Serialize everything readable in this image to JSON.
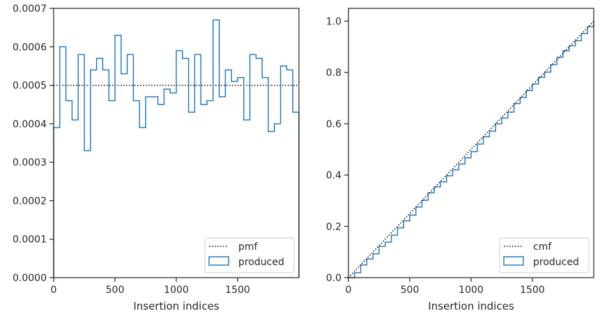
{
  "chart_data": [
    {
      "type": "step-histogram",
      "xlabel": "Insertion indices",
      "ylabel": "",
      "xlim": [
        0,
        2000
      ],
      "ylim": [
        0,
        0.0007
      ],
      "x_ticks": [
        0,
        500,
        1000,
        1500
      ],
      "y_ticks": [
        0.0,
        0.0001,
        0.0002,
        0.0003,
        0.0004,
        0.0005,
        0.0006,
        0.0007
      ],
      "y_tick_labels": [
        "0.0000",
        "0.0001",
        "0.0002",
        "0.0003",
        "0.0004",
        "0.0005",
        "0.0006",
        "0.0007"
      ],
      "bin_width": 50,
      "reference_line": {
        "name": "pmf",
        "value": 0.0005,
        "style": "dotted",
        "color": "#000000"
      },
      "series": [
        {
          "name": "produced",
          "color": "#2b7bba",
          "values": [
            0.00039,
            0.0006,
            0.00046,
            0.00041,
            0.00058,
            0.00033,
            0.00054,
            0.00057,
            0.00054,
            0.00046,
            0.00063,
            0.00053,
            0.00058,
            0.00046,
            0.00039,
            0.00047,
            0.00047,
            0.00045,
            0.00049,
            0.00048,
            0.00059,
            0.00057,
            0.00043,
            0.00058,
            0.00045,
            0.00046,
            0.00067,
            0.00047,
            0.00054,
            0.00051,
            0.00052,
            0.00041,
            0.00058,
            0.00057,
            0.00052,
            0.00038,
            0.0004,
            0.00055,
            0.00054,
            0.00043
          ]
        }
      ],
      "legend": {
        "position": "lower-right",
        "entries": [
          "pmf",
          "produced"
        ]
      },
      "grid": false
    },
    {
      "type": "step-cumulative",
      "xlabel": "Insertion indices",
      "ylabel": "",
      "xlim": [
        0,
        2000
      ],
      "ylim": [
        0,
        1.05
      ],
      "x_ticks": [
        0,
        500,
        1000,
        1500
      ],
      "y_ticks": [
        0.0,
        0.2,
        0.4,
        0.6,
        0.8,
        1.0
      ],
      "y_tick_labels": [
        "0.0",
        "0.2",
        "0.4",
        "0.6",
        "0.8",
        "1.0"
      ],
      "reference_line": {
        "name": "cmf",
        "from": [
          0,
          0
        ],
        "to": [
          2000,
          1.0
        ],
        "style": "dotted",
        "color": "#000000"
      },
      "series": [
        {
          "name": "produced",
          "color": "#2b7bba",
          "x": [
            0,
            50,
            100,
            150,
            200,
            250,
            300,
            350,
            400,
            450,
            500,
            550,
            600,
            650,
            700,
            750,
            800,
            850,
            900,
            950,
            1000,
            1050,
            1100,
            1150,
            1200,
            1250,
            1300,
            1350,
            1400,
            1450,
            1500,
            1550,
            1600,
            1650,
            1700,
            1750,
            1800,
            1850,
            1900,
            1950,
            2000
          ],
          "values": [
            0.0,
            0.0195,
            0.0495,
            0.0725,
            0.093,
            0.122,
            0.1385,
            0.1655,
            0.194,
            0.221,
            0.244,
            0.2755,
            0.302,
            0.331,
            0.354,
            0.3735,
            0.397,
            0.4205,
            0.443,
            0.4675,
            0.4915,
            0.521,
            0.5495,
            0.571,
            0.6,
            0.6225,
            0.6455,
            0.679,
            0.7025,
            0.7295,
            0.755,
            0.781,
            0.8015,
            0.8305,
            0.859,
            0.885,
            0.904,
            0.924,
            0.9515,
            0.9785,
            1.0
          ]
        }
      ],
      "legend": {
        "position": "lower-right",
        "entries": [
          "cmf",
          "produced"
        ]
      },
      "grid": false
    }
  ]
}
